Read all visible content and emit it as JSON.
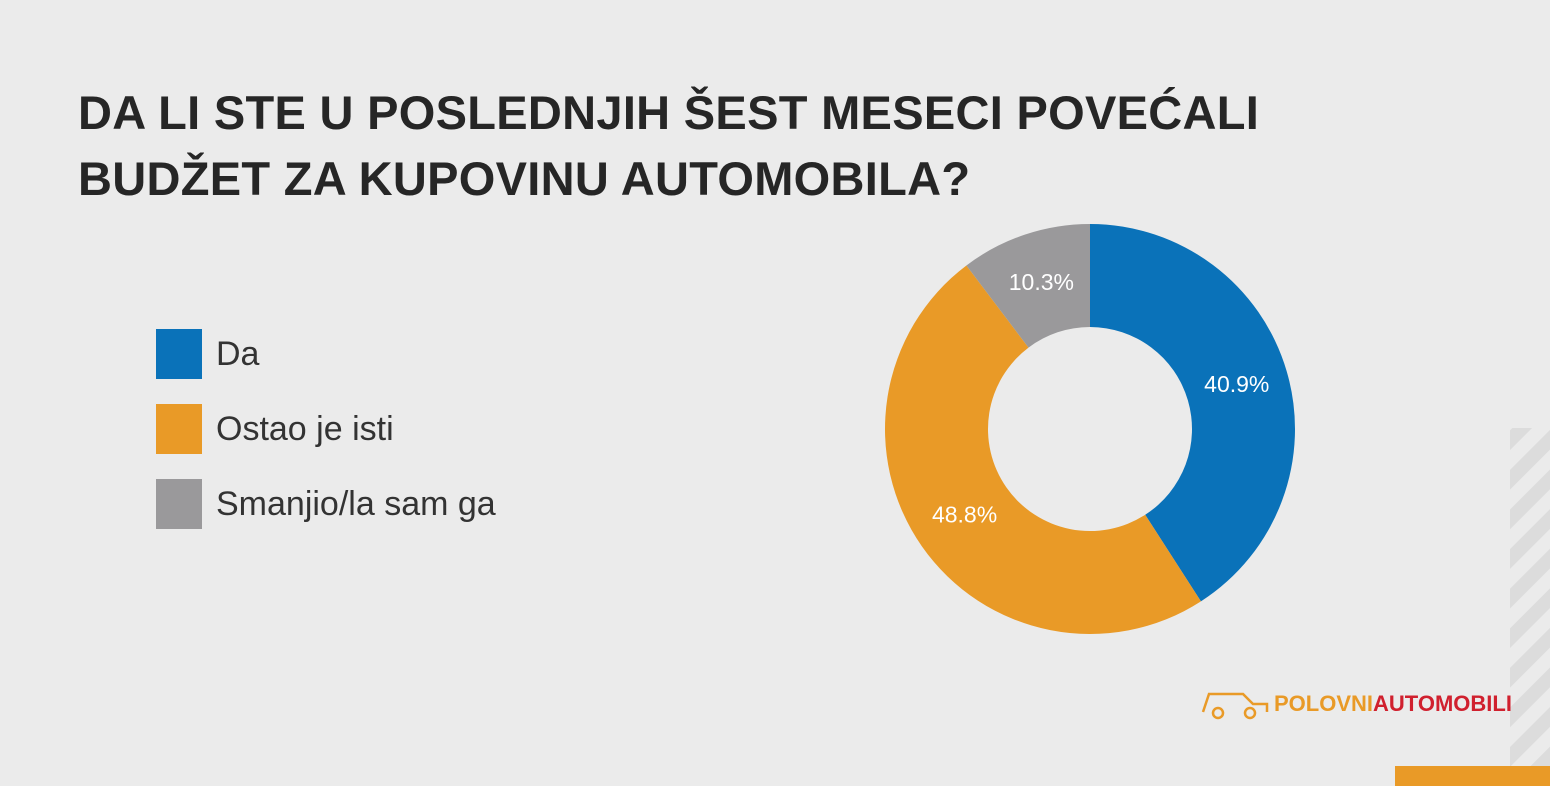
{
  "chart_data": {
    "type": "donut",
    "title": "DA LI STE U POSLEDNJIH ŠEST MESECI POVEĆALI BUDŽET ZA KUPOVINU AUTOMOBILA?",
    "categories": [
      "Da",
      "Ostao je isti",
      "Smanjio/la sam ga"
    ],
    "values": [
      40.9,
      48.8,
      10.3
    ],
    "value_labels": [
      "40.9%",
      "48.8%",
      "10.3%"
    ],
    "colors": [
      "#0a72b9",
      "#e99a27",
      "#9a999b"
    ]
  },
  "brand": [
    "POLOVNI",
    "AUTOMOBILI"
  ]
}
